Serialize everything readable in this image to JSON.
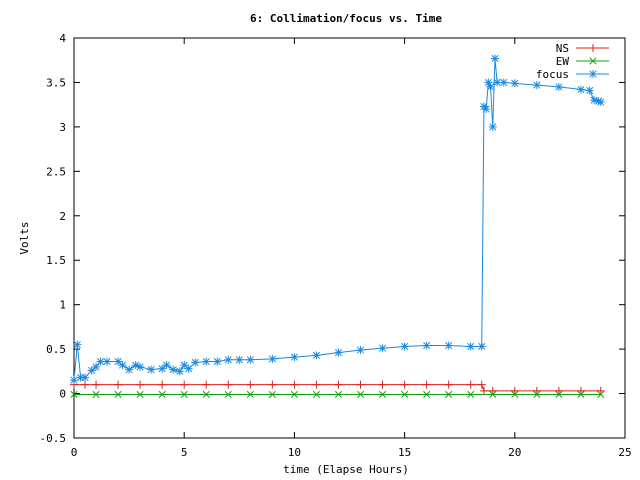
{
  "chart_data": {
    "type": "line",
    "title": "6: Collimation/focus vs. Time",
    "xlabel": "time (Elapse Hours)",
    "ylabel": "Volts",
    "xlim": [
      0,
      25
    ],
    "ylim": [
      -0.5,
      4
    ],
    "xticks": [
      0,
      5,
      10,
      15,
      20,
      25
    ],
    "yticks": [
      -0.5,
      0,
      0.5,
      1,
      1.5,
      2,
      2.5,
      3,
      3.5,
      4
    ],
    "xtick_labels": [
      "0",
      "5",
      "10",
      "15",
      "20",
      "25"
    ],
    "ytick_labels": [
      "-0.5",
      "0",
      "0.5",
      "1",
      "1.5",
      "2",
      "2.5",
      "3",
      "3.5",
      "4"
    ],
    "grid": false,
    "legend_position": "top-right",
    "series": [
      {
        "name": "NS",
        "color": "#e0201a",
        "marker": "plus",
        "x": [
          0.0,
          0.5,
          1.0,
          2.0,
          3.0,
          4.0,
          5.0,
          6.0,
          7.0,
          8.0,
          9.0,
          10.0,
          11.0,
          12.0,
          13.0,
          14.0,
          15.0,
          16.0,
          17.0,
          18.0,
          18.5,
          18.6,
          19.0,
          20.0,
          21.0,
          22.0,
          23.0,
          23.9
        ],
        "values": [
          0.1,
          0.1,
          0.1,
          0.1,
          0.1,
          0.1,
          0.1,
          0.1,
          0.1,
          0.1,
          0.1,
          0.1,
          0.1,
          0.1,
          0.1,
          0.1,
          0.1,
          0.1,
          0.1,
          0.1,
          0.1,
          0.03,
          0.03,
          0.03,
          0.03,
          0.03,
          0.03,
          0.03
        ]
      },
      {
        "name": "EW",
        "color": "#16a016",
        "marker": "x",
        "x": [
          0.0,
          1.0,
          2.0,
          3.0,
          4.0,
          5.0,
          6.0,
          7.0,
          8.0,
          9.0,
          10.0,
          11.0,
          12.0,
          13.0,
          14.0,
          15.0,
          16.0,
          17.0,
          18.0,
          19.0,
          20.0,
          21.0,
          22.0,
          23.0,
          23.9
        ],
        "values": [
          -0.01,
          -0.01,
          -0.01,
          -0.01,
          -0.01,
          -0.01,
          -0.01,
          -0.01,
          -0.01,
          -0.01,
          -0.01,
          -0.01,
          -0.01,
          -0.01,
          -0.01,
          -0.01,
          -0.01,
          -0.01,
          -0.01,
          -0.01,
          -0.01,
          -0.01,
          -0.01,
          -0.01,
          -0.01
        ]
      },
      {
        "name": "focus",
        "color": "#1a8ae0",
        "marker": "star",
        "x": [
          0.0,
          0.15,
          0.3,
          0.5,
          0.8,
          1.0,
          1.2,
          1.5,
          2.0,
          2.2,
          2.5,
          2.8,
          3.0,
          3.5,
          4.0,
          4.2,
          4.5,
          4.8,
          5.0,
          5.2,
          5.5,
          6.0,
          6.5,
          7.0,
          7.5,
          8.0,
          9.0,
          10.0,
          11.0,
          12.0,
          13.0,
          14.0,
          15.0,
          16.0,
          17.0,
          18.0,
          18.5,
          18.6,
          18.7,
          18.8,
          18.9,
          19.0,
          19.1,
          19.2,
          19.5,
          20.0,
          21.0,
          22.0,
          23.0,
          23.4,
          23.6,
          23.8,
          23.9
        ],
        "values": [
          0.15,
          0.55,
          0.18,
          0.18,
          0.26,
          0.3,
          0.36,
          0.36,
          0.36,
          0.32,
          0.27,
          0.32,
          0.3,
          0.27,
          0.28,
          0.32,
          0.27,
          0.25,
          0.32,
          0.28,
          0.35,
          0.36,
          0.36,
          0.38,
          0.38,
          0.38,
          0.39,
          0.41,
          0.43,
          0.46,
          0.49,
          0.51,
          0.53,
          0.54,
          0.54,
          0.53,
          0.53,
          3.23,
          3.2,
          3.5,
          3.45,
          3.0,
          3.77,
          3.5,
          3.5,
          3.49,
          3.47,
          3.45,
          3.42,
          3.41,
          3.3,
          3.29,
          3.28
        ]
      }
    ]
  }
}
